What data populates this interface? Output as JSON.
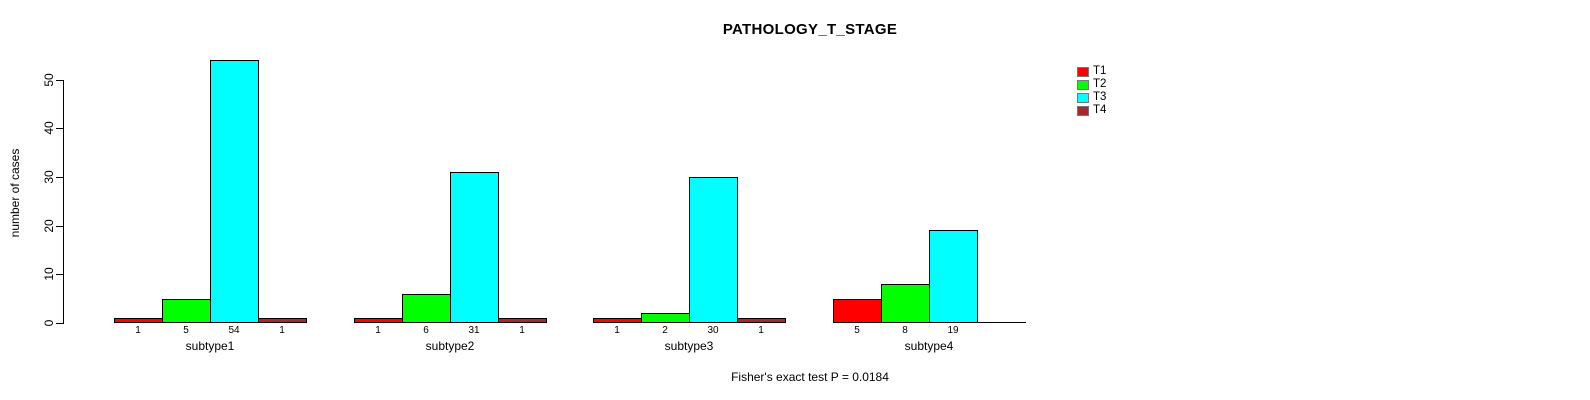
{
  "chart_data": {
    "type": "bar",
    "title": "PATHOLOGY_T_STAGE",
    "xlabel": "",
    "ylabel": "number of cases",
    "ylim": [
      0,
      50
    ],
    "yticks": [
      0,
      10,
      20,
      30,
      40,
      50
    ],
    "grid": false,
    "legend_position": "top-right",
    "categories": [
      "subtype1",
      "subtype2",
      "subtype3",
      "subtype4"
    ],
    "series": [
      {
        "name": "T1",
        "color": "#FF0000",
        "values": [
          1,
          1,
          1,
          5
        ]
      },
      {
        "name": "T2",
        "color": "#00FF00",
        "values": [
          5,
          6,
          2,
          8
        ]
      },
      {
        "name": "T3",
        "color": "#00FFFF",
        "values": [
          54,
          31,
          30,
          19
        ]
      },
      {
        "name": "T4",
        "color": "#A52A2A",
        "values": [
          1,
          1,
          1,
          0
        ]
      }
    ],
    "bar_value_labels": [
      [
        "1",
        "5",
        "54",
        "1"
      ],
      [
        "1",
        "6",
        "31",
        "1"
      ],
      [
        "1",
        "2",
        "30",
        "1"
      ],
      [
        "5",
        "8",
        "19",
        ""
      ]
    ],
    "annotation": "Fisher's exact test P = 0.0184"
  }
}
